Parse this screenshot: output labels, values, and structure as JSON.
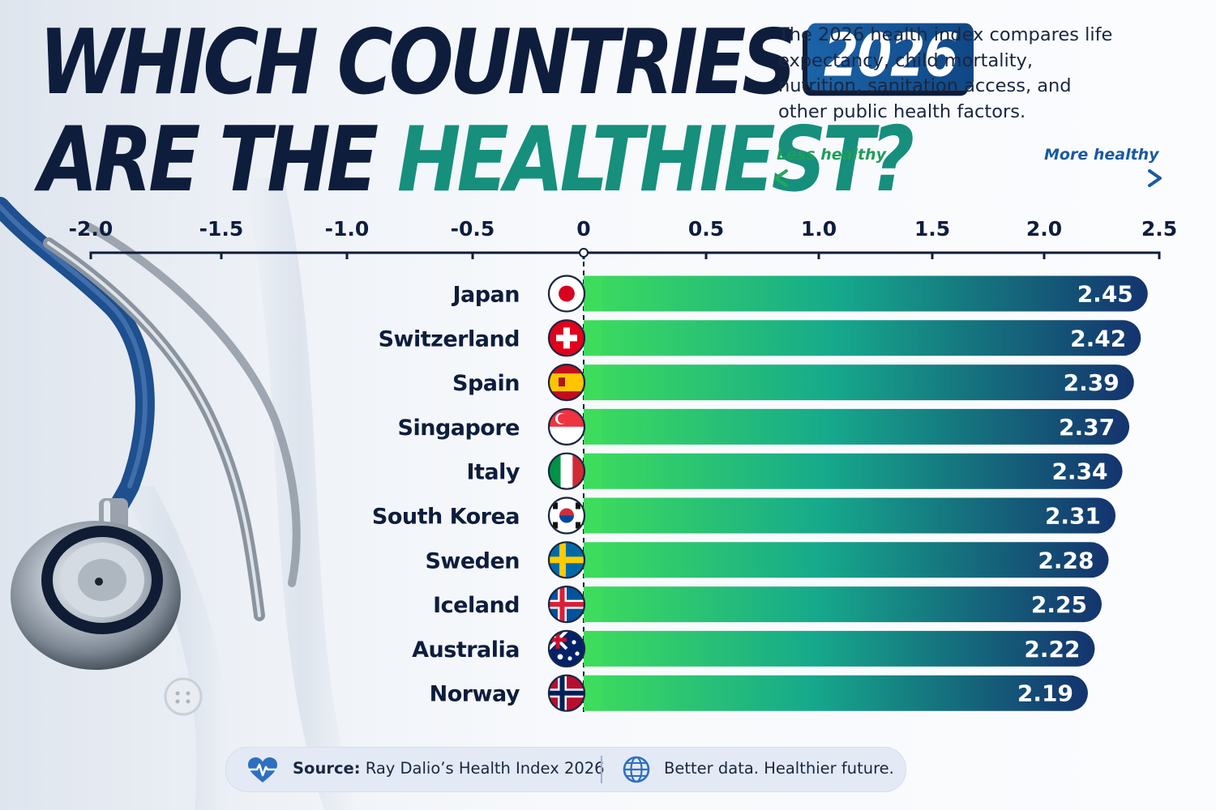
{
  "title": {
    "line1": "WHICH COUNTRIES",
    "badge": "2026",
    "line2_plain": "ARE THE",
    "line2_accent": "HEALTHIEST?"
  },
  "description": "The 2026 health index compares life expectancy, child mortality, nutrition, sanitation access, and other public health factors.",
  "scale_legend": {
    "less": "Less healthy",
    "more": "More healthy"
  },
  "colors": {
    "bar_start": "#3ddc5c",
    "bar_end": "#14346e",
    "title_dark": "#0e1d3c",
    "title_accent": "#168f7d",
    "badge": "#1b63a8"
  },
  "chart_data": {
    "type": "bar",
    "orientation": "horizontal",
    "categories": [
      "Japan",
      "Switzerland",
      "Spain",
      "Singapore",
      "Italy",
      "South Korea",
      "Sweden",
      "Iceland",
      "Australia",
      "Norway"
    ],
    "values": [
      2.45,
      2.42,
      2.39,
      2.37,
      2.34,
      2.31,
      2.28,
      2.25,
      2.22,
      2.19
    ],
    "value_labels": [
      "2.45",
      "2.42",
      "2.39",
      "2.37",
      "2.34",
      "2.31",
      "2.28",
      "2.25",
      "2.22",
      "2.19"
    ],
    "flags": [
      "japan-flag",
      "switzerland-flag",
      "spain-flag",
      "singapore-flag",
      "italy-flag",
      "south-korea-flag",
      "sweden-flag",
      "iceland-flag",
      "australia-flag",
      "norway-flag"
    ],
    "xlim": [
      -2.0,
      2.5
    ],
    "ticks": [
      -2.0,
      -1.5,
      -1.0,
      -0.5,
      0,
      0.5,
      1.0,
      1.5,
      2.0,
      2.5
    ],
    "tick_labels": [
      "-2.0",
      "-1.5",
      "-1.0",
      "-0.5",
      "0",
      "0.5",
      "1.0",
      "1.5",
      "2.0",
      "2.5"
    ],
    "axis_position": "top",
    "grid": false,
    "legend": "none"
  },
  "footer": {
    "source_label": "Source:",
    "source_text": "Ray Dalio’s Health Index 2026",
    "tagline": "Better data. Healthier future.",
    "icons": [
      "heartbeat-icon",
      "globe-icon"
    ]
  }
}
